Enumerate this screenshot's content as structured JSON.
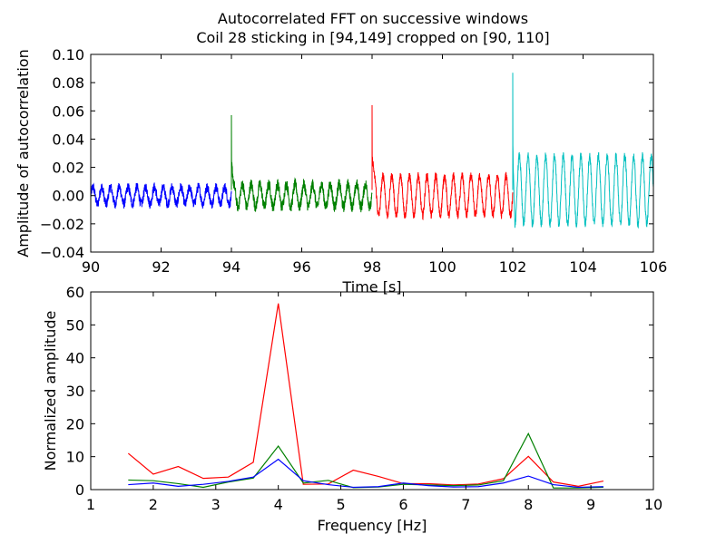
{
  "figure": {
    "title_line1": "Autocorrelated FFT on successive windows",
    "title_line2": "Coil 28 sticking in [94,149] cropped on [90, 110]"
  },
  "chart_data": [
    {
      "type": "line",
      "xlabel": "Time [s]",
      "ylabel": "Amplitude of autocorrelation",
      "xlim": [
        90,
        106
      ],
      "ylim": [
        -0.04,
        0.1
      ],
      "xticks": [
        "90",
        "92",
        "94",
        "96",
        "98",
        "100",
        "102",
        "104",
        "106"
      ],
      "yticks": [
        "0.10",
        "0.08",
        "0.06",
        "0.04",
        "0.02",
        "0.00",
        "−0.02",
        "−0.04"
      ],
      "grid": false,
      "series": [
        {
          "color": "#0000ff",
          "x_range": [
            90,
            94
          ],
          "spike": null,
          "amplitude": 0.006,
          "noise": 0.0035,
          "freq_hz": 4
        },
        {
          "color": "#008000",
          "x_range": [
            94,
            98
          ],
          "spike": 0.057,
          "amplitude": 0.008,
          "noise": 0.004,
          "freq_hz": 4
        },
        {
          "color": "#ff0000",
          "x_range": [
            98,
            102
          ],
          "spike": 0.064,
          "amplitude": 0.014,
          "noise": 0.003,
          "freq_hz": 4
        },
        {
          "color": "#00bfbf",
          "x_range": [
            102,
            106
          ],
          "spike": 0.087,
          "amplitude": 0.024,
          "noise": 0.003,
          "freq_hz": 4
        }
      ]
    },
    {
      "type": "line",
      "xlabel": "Frequency [Hz]",
      "ylabel": "Normalized amplitude",
      "xlim": [
        1,
        10
      ],
      "ylim": [
        0,
        60
      ],
      "xticks": [
        "1",
        "2",
        "3",
        "4",
        "5",
        "6",
        "7",
        "8",
        "9",
        "10"
      ],
      "yticks": [
        "60",
        "50",
        "40",
        "30",
        "20",
        "10",
        "0"
      ],
      "grid": false,
      "x": [
        1.6,
        2.0,
        2.4,
        2.8,
        3.2,
        3.6,
        4.0,
        4.4,
        4.8,
        5.2,
        5.6,
        6.0,
        6.4,
        6.8,
        7.2,
        7.6,
        8.0,
        8.4,
        8.8,
        9.2
      ],
      "series": [
        {
          "color": "#ff0000",
          "values": [
            11,
            4.7,
            7,
            3.4,
            3.8,
            8.3,
            56.5,
            1.6,
            1.7,
            5.9,
            4.0,
            1.8,
            1.8,
            1.4,
            1.7,
            3.3,
            10.1,
            2.3,
            1.0,
            2.6
          ]
        },
        {
          "color": "#008000",
          "values": [
            2.9,
            2.7,
            1.8,
            0.7,
            2.3,
            3.5,
            13.2,
            2.0,
            2.8,
            0.6,
            0.8,
            1.6,
            1.4,
            1.2,
            1.4,
            2.7,
            17.0,
            0.5,
            0.5,
            0.7
          ]
        },
        {
          "color": "#0000ff",
          "values": [
            1.5,
            2.0,
            1.0,
            1.6,
            2.5,
            3.8,
            9.2,
            2.7,
            1.5,
            0.7,
            0.9,
            2.0,
            1.2,
            0.8,
            0.9,
            2.0,
            4.1,
            1.5,
            0.7,
            0.9
          ]
        }
      ]
    }
  ]
}
